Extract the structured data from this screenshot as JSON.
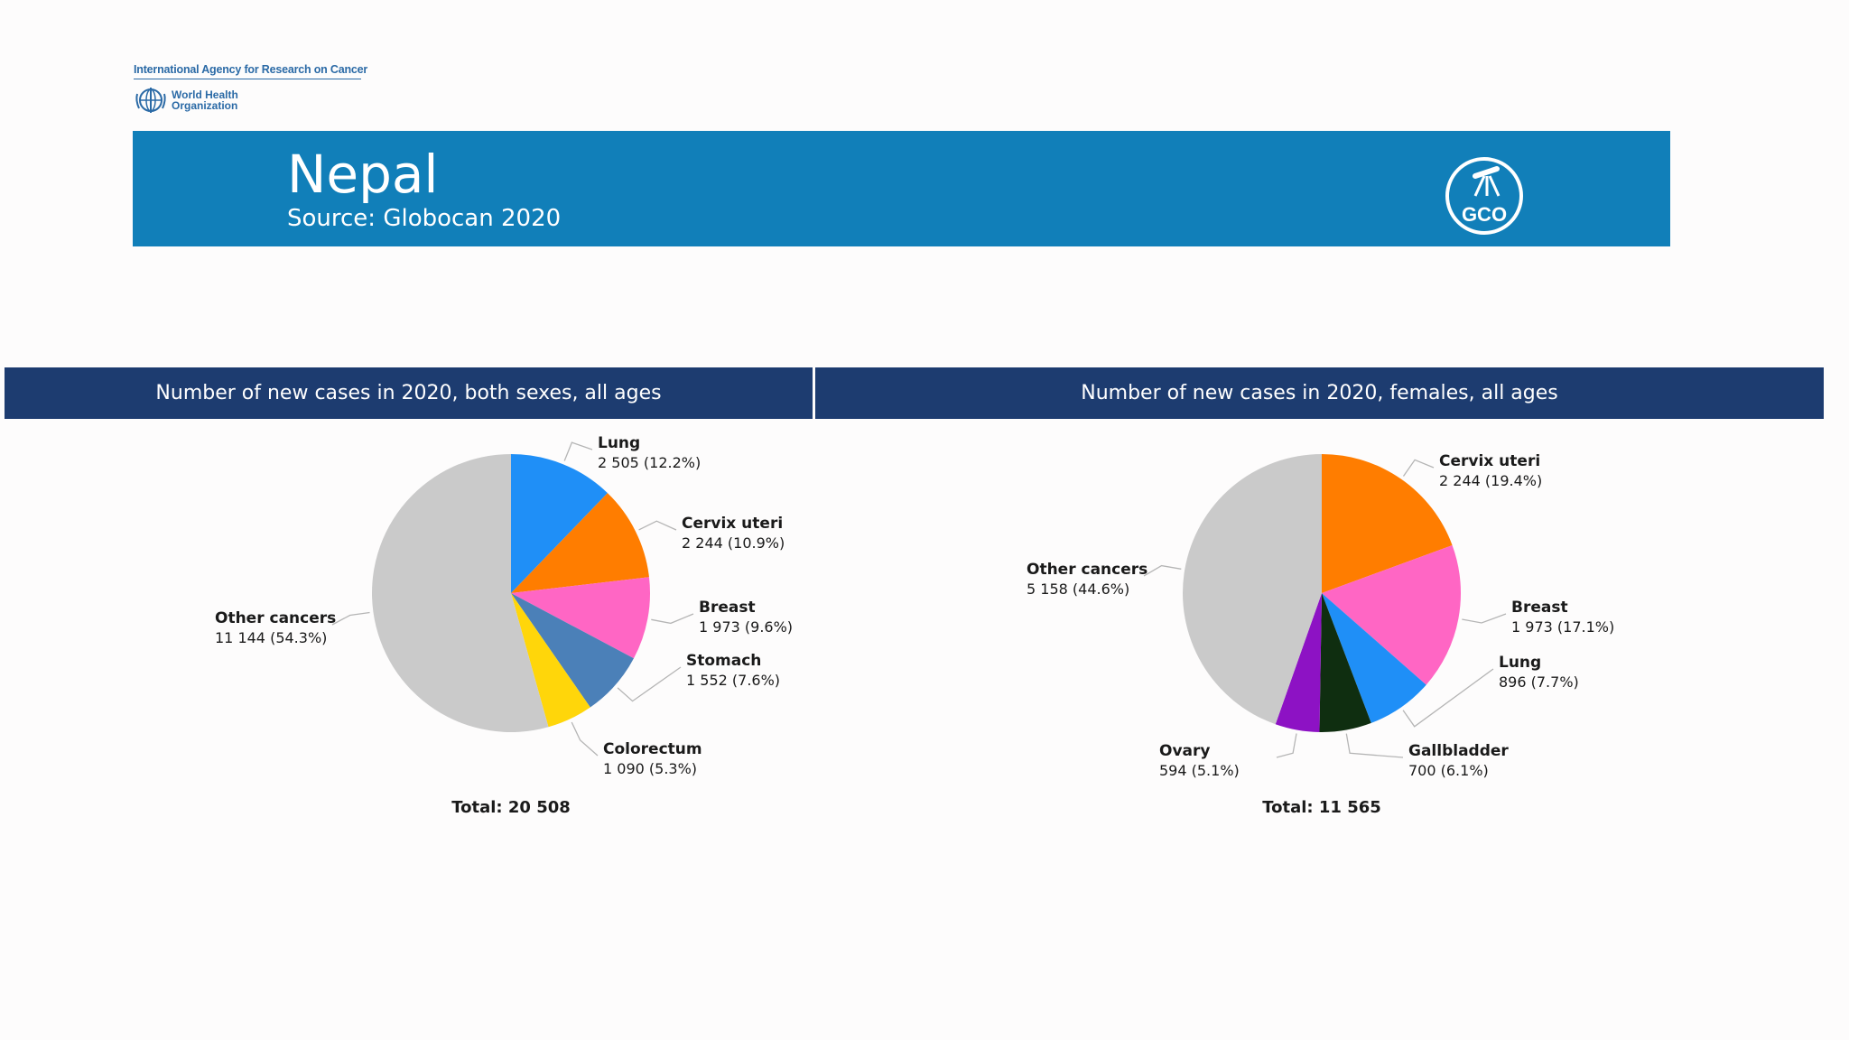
{
  "org": {
    "agency": "International Agency for Research on Cancer",
    "who_line1": "World Health",
    "who_line2": "Organization"
  },
  "banner": {
    "title": "Nepal",
    "subtitle": "Source: Globocan 2020",
    "logo_text": "GCO",
    "color": "#117fb9"
  },
  "chart_data": [
    {
      "type": "pie",
      "title": "Number of new cases in 2020, both sexes, all ages",
      "total_label": "Total: 20 508",
      "slices": [
        {
          "name": "Lung",
          "value": 2505,
          "value_label": "2 505 (12.2%)",
          "color": "#1f8ff7"
        },
        {
          "name": "Cervix uteri",
          "value": 2244,
          "value_label": "2 244 (10.9%)",
          "color": "#ff7d00"
        },
        {
          "name": "Breast",
          "value": 1973,
          "value_label": "1 973 (9.6%)",
          "color": "#ff66c4"
        },
        {
          "name": "Stomach",
          "value": 1552,
          "value_label": "1 552 (7.6%)",
          "color": "#4b80b8"
        },
        {
          "name": "Colorectum",
          "value": 1090,
          "value_label": "1 090 (5.3%)",
          "color": "#ffd60a"
        },
        {
          "name": "Other cancers",
          "value": 11144,
          "value_label": "11 144 (54.3%)",
          "color": "#cacaca"
        }
      ]
    },
    {
      "type": "pie",
      "title": "Number of new cases in 2020, females, all ages",
      "total_label": "Total: 11 565",
      "slices": [
        {
          "name": "Cervix uteri",
          "value": 2244,
          "value_label": "2 244 (19.4%)",
          "color": "#ff7d00"
        },
        {
          "name": "Breast",
          "value": 1973,
          "value_label": "1 973 (17.1%)",
          "color": "#ff66c4"
        },
        {
          "name": "Lung",
          "value": 896,
          "value_label": "896 (7.7%)",
          "color": "#1f8ff7"
        },
        {
          "name": "Gallbladder",
          "value": 700,
          "value_label": "700 (6.1%)",
          "color": "#0f2e10"
        },
        {
          "name": "Ovary",
          "value": 594,
          "value_label": "594 (5.1%)",
          "color": "#8d12c4"
        },
        {
          "name": "Other cancers",
          "value": 5158,
          "value_label": "5 158 (44.6%)",
          "color": "#cacaca"
        }
      ]
    }
  ]
}
